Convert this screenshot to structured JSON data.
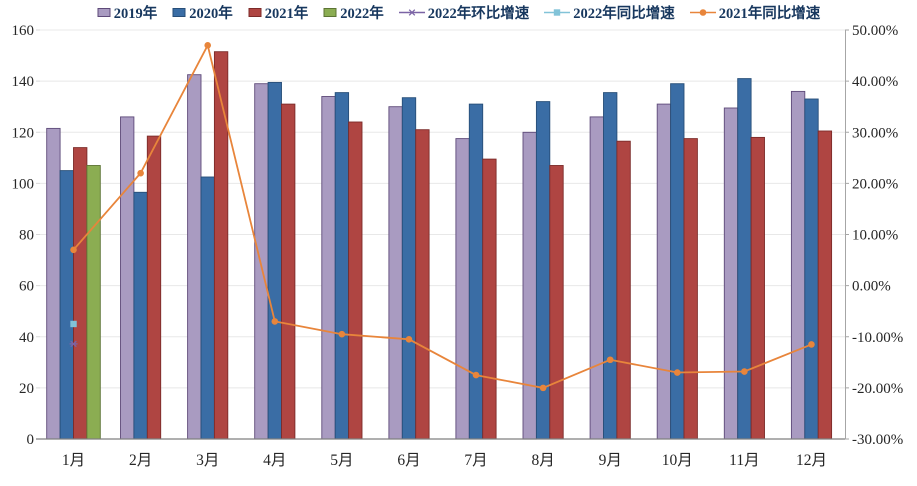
{
  "chart_data": {
    "type": "combo-bar-line",
    "grid": true,
    "legend_position": "top",
    "categories": [
      "1月",
      "2月",
      "3月",
      "4月",
      "5月",
      "6月",
      "7月",
      "8月",
      "9月",
      "10月",
      "11月",
      "12月"
    ],
    "bar_series": [
      {
        "name": "2019年",
        "color": "#A99BC1",
        "border": "#5E4A79",
        "values": [
          121.5,
          126,
          142.5,
          139,
          134,
          130,
          117.5,
          120,
          126,
          131,
          129.5,
          136
        ]
      },
      {
        "name": "2020年",
        "color": "#3A6DA5",
        "border": "#274E78",
        "values": [
          105,
          96.5,
          102.5,
          139.5,
          135.5,
          133.5,
          131,
          132,
          135.5,
          139,
          141,
          133
        ]
      },
      {
        "name": "2021年",
        "color": "#AF4542",
        "border": "#7C2B29",
        "values": [
          114,
          118.5,
          151.5,
          131,
          124,
          121,
          109.5,
          107,
          116.5,
          117.5,
          118,
          120.5
        ]
      },
      {
        "name": "2022年",
        "color": "#8BAD52",
        "border": "#5C7434",
        "values": [
          107,
          null,
          null,
          null,
          null,
          null,
          null,
          null,
          null,
          null,
          null,
          null
        ]
      }
    ],
    "line_series": [
      {
        "name": "2022年环比增速",
        "color": "#7B64A5",
        "marker": "asterisk",
        "values": [
          -11.4,
          null,
          null,
          null,
          null,
          null,
          null,
          null,
          null,
          null,
          null,
          null
        ]
      },
      {
        "name": "2022年同比增速",
        "color": "#82C3D8",
        "marker": "square",
        "values": [
          -7.5,
          null,
          null,
          null,
          null,
          null,
          null,
          null,
          null,
          null,
          null,
          null
        ]
      },
      {
        "name": "2021年同比增速",
        "color": "#E8853B",
        "marker": "circle",
        "values": [
          7,
          22,
          47,
          -7,
          -9.5,
          -10.5,
          -17.5,
          -20,
          -14.5,
          -17,
          -16.8,
          -11.5
        ]
      }
    ],
    "left_axis": {
      "min": 0,
      "max": 160,
      "step": 20,
      "ticks": [
        "0",
        "20",
        "40",
        "60",
        "80",
        "100",
        "120",
        "140",
        "160"
      ]
    },
    "right_axis": {
      "min": -30,
      "max": 50,
      "step": 10,
      "ticks": [
        "-30.00%",
        "-20.00%",
        "-10.00%",
        "0.00%",
        "10.00%",
        "20.00%",
        "30.00%",
        "40.00%",
        "50.00%"
      ]
    }
  },
  "style": {
    "gridline_color": "#E8E8E8",
    "axis_line_color": "#7F7F7F",
    "tick_color": "#A6A6A6",
    "axis_text_color": "#262626",
    "legend_text_color": "#17375E",
    "background": "#FFFFFF"
  }
}
